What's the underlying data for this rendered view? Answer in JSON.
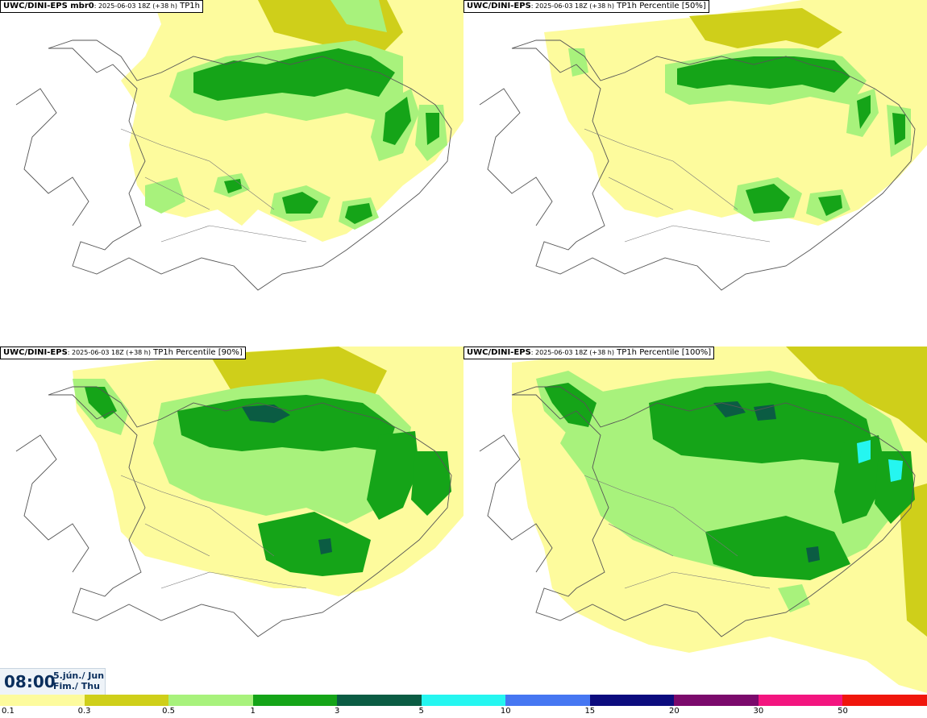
{
  "panels": [
    {
      "model": "UWC/DINI-EPS mbr0",
      "run": ": 2025-06-03 18Z (+38 h)",
      "field": "TP1h"
    },
    {
      "model": "UWC/DINI-EPS",
      "run": ": 2025-06-03 18Z (+38 h)",
      "field": "TP1h Percentile [50%]"
    },
    {
      "model": "UWC/DINI-EPS",
      "run": ": 2025-06-03 18Z (+38 h)",
      "field": "TP1h Percentile [90%]"
    },
    {
      "model": "UWC/DINI-EPS",
      "run": ": 2025-06-03 18Z (+38 h)",
      "field": "TP1h Percentile [100%]"
    }
  ],
  "valid_time": {
    "clock": "08:00",
    "date_line1": "5.jún./ Jun",
    "date_line2": "Fim./ Thu"
  },
  "legend": {
    "ticks": [
      "0.1",
      "0.3",
      "0.5",
      "1",
      "3",
      "5",
      "10",
      "15",
      "20",
      "30",
      "50"
    ],
    "colors": [
      "#fdfb9d",
      "#cfcf1a",
      "#a8f27c",
      "#15a418",
      "#0b5c43",
      "#25f6f0",
      "#4677f2",
      "#0c0c7e",
      "#7b0a6c",
      "#f3157f",
      "#f0160c"
    ]
  }
}
